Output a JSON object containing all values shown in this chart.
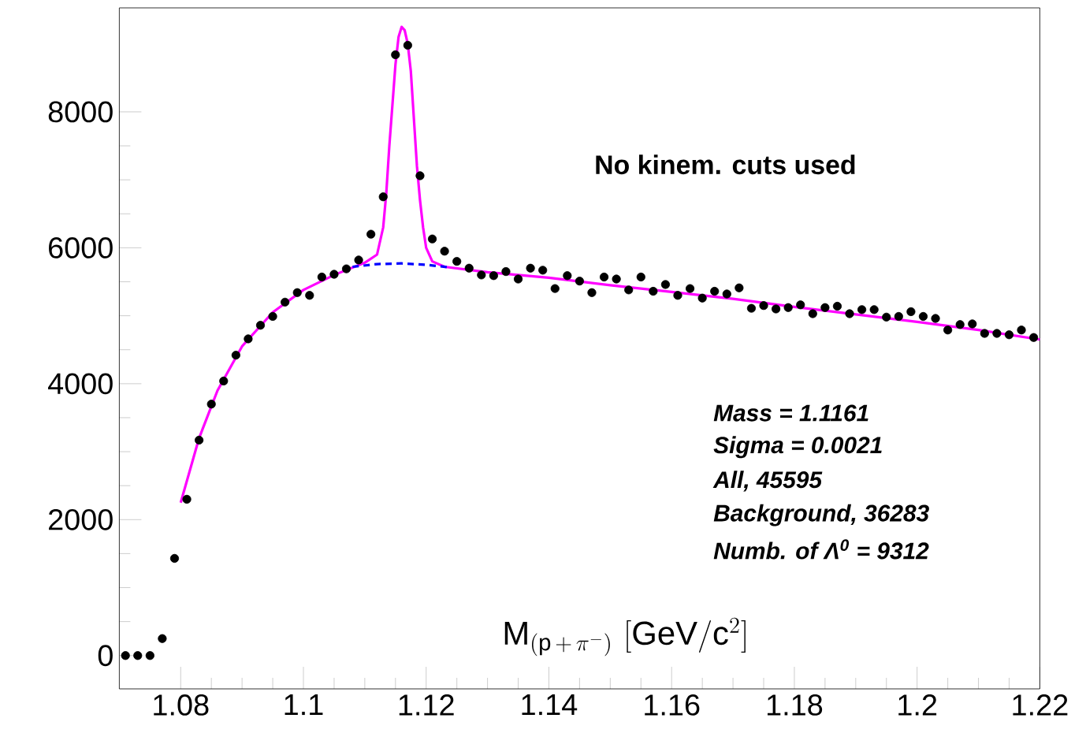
{
  "chart_data": {
    "type": "scatter",
    "xlabel": "\\mathrm{M}_{(\\mathrm{p}\\,+\\,\\pi^{-})}\\ [\\mathrm{GeV}/\\mathrm{c}^{2}]",
    "annotations": [
      "No kinem. cuts used",
      "Mass = 1.1161",
      "Sigma = 0.0021",
      "All, 45595",
      "Background, 36283",
      "Numb. of  Λ$^{0}$  = 9312"
    ],
    "xlim": [
      1.07,
      1.22
    ],
    "ylim": [
      -490,
      9530
    ],
    "xticks": [
      1.08,
      1.1,
      1.12,
      1.14,
      1.16,
      1.18,
      1.2,
      1.22
    ],
    "yticks": [
      0,
      2000,
      4000,
      6000,
      8000
    ],
    "grid": false,
    "series": [
      {
        "color": "#000000",
        "marker": "circle",
        "x": [
          1.071,
          1.073,
          1.075,
          1.077,
          1.079,
          1.081,
          1.083,
          1.085,
          1.087,
          1.089,
          1.091,
          1.093,
          1.095,
          1.097,
          1.099,
          1.101,
          1.103,
          1.105,
          1.107,
          1.109,
          1.111,
          1.113,
          1.115,
          1.117,
          1.119,
          1.121,
          1.123,
          1.125,
          1.127,
          1.129,
          1.131,
          1.133,
          1.135,
          1.137,
          1.139,
          1.141,
          1.143,
          1.145,
          1.147,
          1.149,
          1.151,
          1.153,
          1.155,
          1.157,
          1.159,
          1.161,
          1.163,
          1.165,
          1.167,
          1.169,
          1.171,
          1.173,
          1.175,
          1.177,
          1.179,
          1.181,
          1.183,
          1.185,
          1.187,
          1.189,
          1.191,
          1.193,
          1.195,
          1.197,
          1.199,
          1.201,
          1.203,
          1.205,
          1.207,
          1.209,
          1.211,
          1.213,
          1.215,
          1.217,
          1.219
        ],
        "values": [
          0,
          0,
          0,
          250,
          1430,
          2300,
          3170,
          3700,
          4040,
          4420,
          4660,
          4860,
          4990,
          5200,
          5340,
          5300,
          5570,
          5610,
          5690,
          5820,
          6200,
          6750,
          8840,
          8980,
          7060,
          6130,
          5950,
          5800,
          5700,
          5600,
          5590,
          5650,
          5540,
          5700,
          5670,
          5400,
          5590,
          5510,
          5340,
          5570,
          5540,
          5380,
          5570,
          5360,
          5460,
          5300,
          5400,
          5260,
          5360,
          5320,
          5410,
          5110,
          5150,
          5100,
          5120,
          5160,
          5030,
          5120,
          5140,
          5030,
          5090,
          5090,
          4980,
          4990,
          5060,
          4990,
          4960,
          4790,
          4870,
          4880,
          4740,
          4740,
          4720,
          4790,
          4680
        ]
      },
      {
        "type": "line",
        "color": "#ff00ff",
        "marker": "none",
        "line_style": "solid",
        "x": [
          1.08,
          1.083,
          1.086,
          1.09,
          1.095,
          1.1,
          1.105,
          1.11,
          1.112,
          1.113,
          1.1135,
          1.114,
          1.1145,
          1.115,
          1.1155,
          1.116,
          1.1165,
          1.117,
          1.1175,
          1.118,
          1.1185,
          1.119,
          1.1195,
          1.12,
          1.121,
          1.123,
          1.13,
          1.14,
          1.15,
          1.16,
          1.17,
          1.18,
          1.19,
          1.2,
          1.21,
          1.22
        ],
        "values": [
          2250,
          3200,
          3900,
          4550,
          5050,
          5380,
          5600,
          5780,
          5900,
          6300,
          6800,
          7500,
          8100,
          8700,
          9100,
          9250,
          9200,
          9000,
          8600,
          7900,
          7200,
          6700,
          6300,
          6000,
          5800,
          5720,
          5640,
          5560,
          5450,
          5350,
          5250,
          5130,
          5020,
          4910,
          4790,
          4650
        ]
      },
      {
        "type": "line",
        "color": "#0000ff",
        "marker": "none",
        "line_style": "dashed",
        "x": [
          1.108,
          1.112,
          1.116,
          1.12,
          1.124
        ],
        "values": [
          5720,
          5760,
          5770,
          5750,
          5710
        ]
      }
    ]
  }
}
